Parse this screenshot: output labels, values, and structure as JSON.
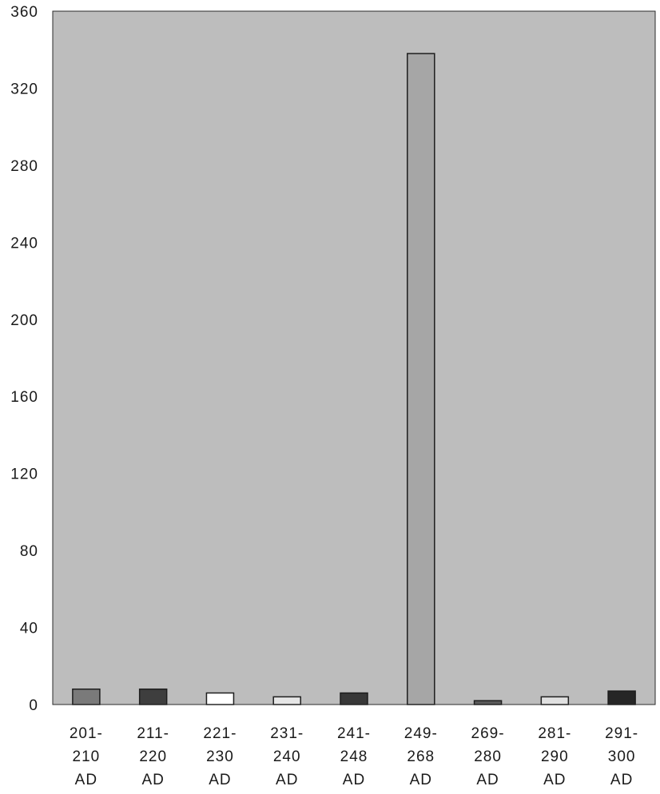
{
  "chart_data": {
    "type": "bar",
    "categories": [
      [
        "201-",
        "210",
        "AD"
      ],
      [
        "211-",
        "220",
        "AD"
      ],
      [
        "221-",
        "230",
        "AD"
      ],
      [
        "231-",
        "240",
        "AD"
      ],
      [
        "241-",
        "248",
        "AD"
      ],
      [
        "249-",
        "268",
        "AD"
      ],
      [
        "269-",
        "280",
        "AD"
      ],
      [
        "281-",
        "290",
        "AD"
      ],
      [
        "291-",
        "300",
        "AD"
      ]
    ],
    "values": [
      8,
      8,
      6,
      4,
      6,
      338,
      2,
      4,
      7
    ],
    "bar_colors": [
      "#7a7a7a",
      "#3e3e3e",
      "#ffffff",
      "#e6e6e6",
      "#383838",
      "#a6a6a6",
      "#5a5a5a",
      "#e0e0e0",
      "#262626"
    ],
    "plot_background": "#bdbdbd",
    "title": "",
    "xlabel": "",
    "ylabel": "",
    "ylim": [
      0,
      360
    ],
    "yticks": [
      0,
      40,
      80,
      120,
      160,
      200,
      240,
      280,
      320,
      360
    ],
    "grid": false,
    "legend": "none"
  }
}
